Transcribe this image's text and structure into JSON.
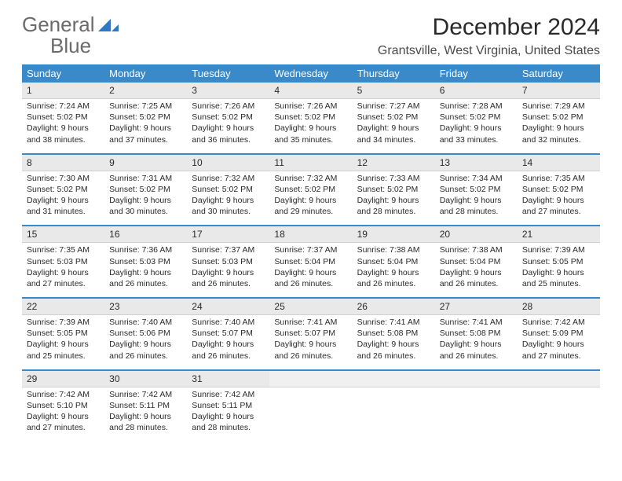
{
  "logo": {
    "word1": "General",
    "word2": "Blue"
  },
  "title": "December 2024",
  "location": "Grantsville, West Virginia, United States",
  "colors": {
    "header_bg": "#3a8ac9",
    "header_fg": "#ffffff",
    "daynum_bg": "#e9e9e9",
    "separator": "#3a8ac9",
    "logo_gray": "#6b6b6b",
    "logo_blue": "#2f78c4"
  },
  "weekdays": [
    "Sunday",
    "Monday",
    "Tuesday",
    "Wednesday",
    "Thursday",
    "Friday",
    "Saturday"
  ],
  "weeks": [
    [
      {
        "n": "1",
        "sr": "Sunrise: 7:24 AM",
        "ss": "Sunset: 5:02 PM",
        "dl": "Daylight: 9 hours and 38 minutes."
      },
      {
        "n": "2",
        "sr": "Sunrise: 7:25 AM",
        "ss": "Sunset: 5:02 PM",
        "dl": "Daylight: 9 hours and 37 minutes."
      },
      {
        "n": "3",
        "sr": "Sunrise: 7:26 AM",
        "ss": "Sunset: 5:02 PM",
        "dl": "Daylight: 9 hours and 36 minutes."
      },
      {
        "n": "4",
        "sr": "Sunrise: 7:26 AM",
        "ss": "Sunset: 5:02 PM",
        "dl": "Daylight: 9 hours and 35 minutes."
      },
      {
        "n": "5",
        "sr": "Sunrise: 7:27 AM",
        "ss": "Sunset: 5:02 PM",
        "dl": "Daylight: 9 hours and 34 minutes."
      },
      {
        "n": "6",
        "sr": "Sunrise: 7:28 AM",
        "ss": "Sunset: 5:02 PM",
        "dl": "Daylight: 9 hours and 33 minutes."
      },
      {
        "n": "7",
        "sr": "Sunrise: 7:29 AM",
        "ss": "Sunset: 5:02 PM",
        "dl": "Daylight: 9 hours and 32 minutes."
      }
    ],
    [
      {
        "n": "8",
        "sr": "Sunrise: 7:30 AM",
        "ss": "Sunset: 5:02 PM",
        "dl": "Daylight: 9 hours and 31 minutes."
      },
      {
        "n": "9",
        "sr": "Sunrise: 7:31 AM",
        "ss": "Sunset: 5:02 PM",
        "dl": "Daylight: 9 hours and 30 minutes."
      },
      {
        "n": "10",
        "sr": "Sunrise: 7:32 AM",
        "ss": "Sunset: 5:02 PM",
        "dl": "Daylight: 9 hours and 30 minutes."
      },
      {
        "n": "11",
        "sr": "Sunrise: 7:32 AM",
        "ss": "Sunset: 5:02 PM",
        "dl": "Daylight: 9 hours and 29 minutes."
      },
      {
        "n": "12",
        "sr": "Sunrise: 7:33 AM",
        "ss": "Sunset: 5:02 PM",
        "dl": "Daylight: 9 hours and 28 minutes."
      },
      {
        "n": "13",
        "sr": "Sunrise: 7:34 AM",
        "ss": "Sunset: 5:02 PM",
        "dl": "Daylight: 9 hours and 28 minutes."
      },
      {
        "n": "14",
        "sr": "Sunrise: 7:35 AM",
        "ss": "Sunset: 5:02 PM",
        "dl": "Daylight: 9 hours and 27 minutes."
      }
    ],
    [
      {
        "n": "15",
        "sr": "Sunrise: 7:35 AM",
        "ss": "Sunset: 5:03 PM",
        "dl": "Daylight: 9 hours and 27 minutes."
      },
      {
        "n": "16",
        "sr": "Sunrise: 7:36 AM",
        "ss": "Sunset: 5:03 PM",
        "dl": "Daylight: 9 hours and 26 minutes."
      },
      {
        "n": "17",
        "sr": "Sunrise: 7:37 AM",
        "ss": "Sunset: 5:03 PM",
        "dl": "Daylight: 9 hours and 26 minutes."
      },
      {
        "n": "18",
        "sr": "Sunrise: 7:37 AM",
        "ss": "Sunset: 5:04 PM",
        "dl": "Daylight: 9 hours and 26 minutes."
      },
      {
        "n": "19",
        "sr": "Sunrise: 7:38 AM",
        "ss": "Sunset: 5:04 PM",
        "dl": "Daylight: 9 hours and 26 minutes."
      },
      {
        "n": "20",
        "sr": "Sunrise: 7:38 AM",
        "ss": "Sunset: 5:04 PM",
        "dl": "Daylight: 9 hours and 26 minutes."
      },
      {
        "n": "21",
        "sr": "Sunrise: 7:39 AM",
        "ss": "Sunset: 5:05 PM",
        "dl": "Daylight: 9 hours and 25 minutes."
      }
    ],
    [
      {
        "n": "22",
        "sr": "Sunrise: 7:39 AM",
        "ss": "Sunset: 5:05 PM",
        "dl": "Daylight: 9 hours and 25 minutes."
      },
      {
        "n": "23",
        "sr": "Sunrise: 7:40 AM",
        "ss": "Sunset: 5:06 PM",
        "dl": "Daylight: 9 hours and 26 minutes."
      },
      {
        "n": "24",
        "sr": "Sunrise: 7:40 AM",
        "ss": "Sunset: 5:07 PM",
        "dl": "Daylight: 9 hours and 26 minutes."
      },
      {
        "n": "25",
        "sr": "Sunrise: 7:41 AM",
        "ss": "Sunset: 5:07 PM",
        "dl": "Daylight: 9 hours and 26 minutes."
      },
      {
        "n": "26",
        "sr": "Sunrise: 7:41 AM",
        "ss": "Sunset: 5:08 PM",
        "dl": "Daylight: 9 hours and 26 minutes."
      },
      {
        "n": "27",
        "sr": "Sunrise: 7:41 AM",
        "ss": "Sunset: 5:08 PM",
        "dl": "Daylight: 9 hours and 26 minutes."
      },
      {
        "n": "28",
        "sr": "Sunrise: 7:42 AM",
        "ss": "Sunset: 5:09 PM",
        "dl": "Daylight: 9 hours and 27 minutes."
      }
    ],
    [
      {
        "n": "29",
        "sr": "Sunrise: 7:42 AM",
        "ss": "Sunset: 5:10 PM",
        "dl": "Daylight: 9 hours and 27 minutes."
      },
      {
        "n": "30",
        "sr": "Sunrise: 7:42 AM",
        "ss": "Sunset: 5:11 PM",
        "dl": "Daylight: 9 hours and 28 minutes."
      },
      {
        "n": "31",
        "sr": "Sunrise: 7:42 AM",
        "ss": "Sunset: 5:11 PM",
        "dl": "Daylight: 9 hours and 28 minutes."
      },
      null,
      null,
      null,
      null
    ]
  ]
}
